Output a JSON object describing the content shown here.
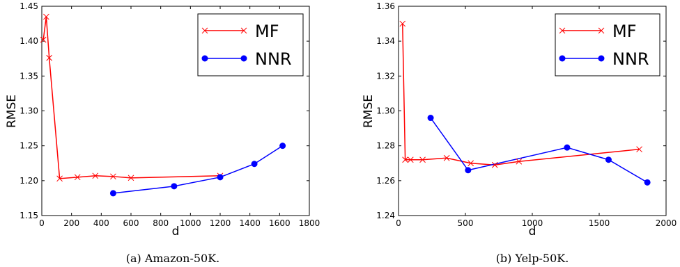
{
  "chart_data": [
    {
      "type": "line",
      "caption": "(a)  Amazon-50K.",
      "xlabel": "d",
      "ylabel": "RMSE",
      "xlim": [
        0,
        1800
      ],
      "ylim": [
        1.15,
        1.45
      ],
      "xticks": [
        "0",
        "200",
        "400",
        "600",
        "800",
        "1000",
        "1200",
        "1400",
        "1600",
        "1800"
      ],
      "yticks": [
        "1.15",
        "1.20",
        "1.25",
        "1.30",
        "1.35",
        "1.40",
        "1.45"
      ],
      "legend_position": "top-right",
      "series": [
        {
          "name": "MF",
          "color": "#ff0000",
          "marker": "x",
          "x": [
            10,
            30,
            50,
            120,
            240,
            360,
            480,
            600,
            1200
          ],
          "y": [
            1.402,
            1.435,
            1.376,
            1.203,
            1.205,
            1.207,
            1.206,
            1.204,
            1.207
          ]
        },
        {
          "name": "NNR",
          "color": "#0000ff",
          "marker": "circle",
          "x": [
            480,
            890,
            1200,
            1430,
            1620
          ],
          "y": [
            1.182,
            1.192,
            1.205,
            1.224,
            1.25
          ]
        }
      ]
    },
    {
      "type": "line",
      "caption": "(b)  Yelp-50K.",
      "xlabel": "d",
      "ylabel": "RMSE",
      "xlim": [
        0,
        2000
      ],
      "ylim": [
        1.24,
        1.36
      ],
      "xticks": [
        "0",
        "500",
        "1000",
        "1500",
        "2000"
      ],
      "yticks": [
        "1.24",
        "1.26",
        "1.28",
        "1.30",
        "1.32",
        "1.34",
        "1.36"
      ],
      "legend_position": "top-right",
      "series": [
        {
          "name": "MF",
          "color": "#ff0000",
          "marker": "x",
          "x": [
            30,
            50,
            90,
            180,
            360,
            540,
            720,
            900,
            1800
          ],
          "y": [
            1.35,
            1.272,
            1.272,
            1.272,
            1.273,
            1.27,
            1.269,
            1.271,
            1.278
          ]
        },
        {
          "name": "NNR",
          "color": "#0000ff",
          "marker": "circle",
          "x": [
            240,
            520,
            1260,
            1570,
            1860
          ],
          "y": [
            1.296,
            1.266,
            1.279,
            1.272,
            1.259
          ]
        }
      ]
    }
  ]
}
